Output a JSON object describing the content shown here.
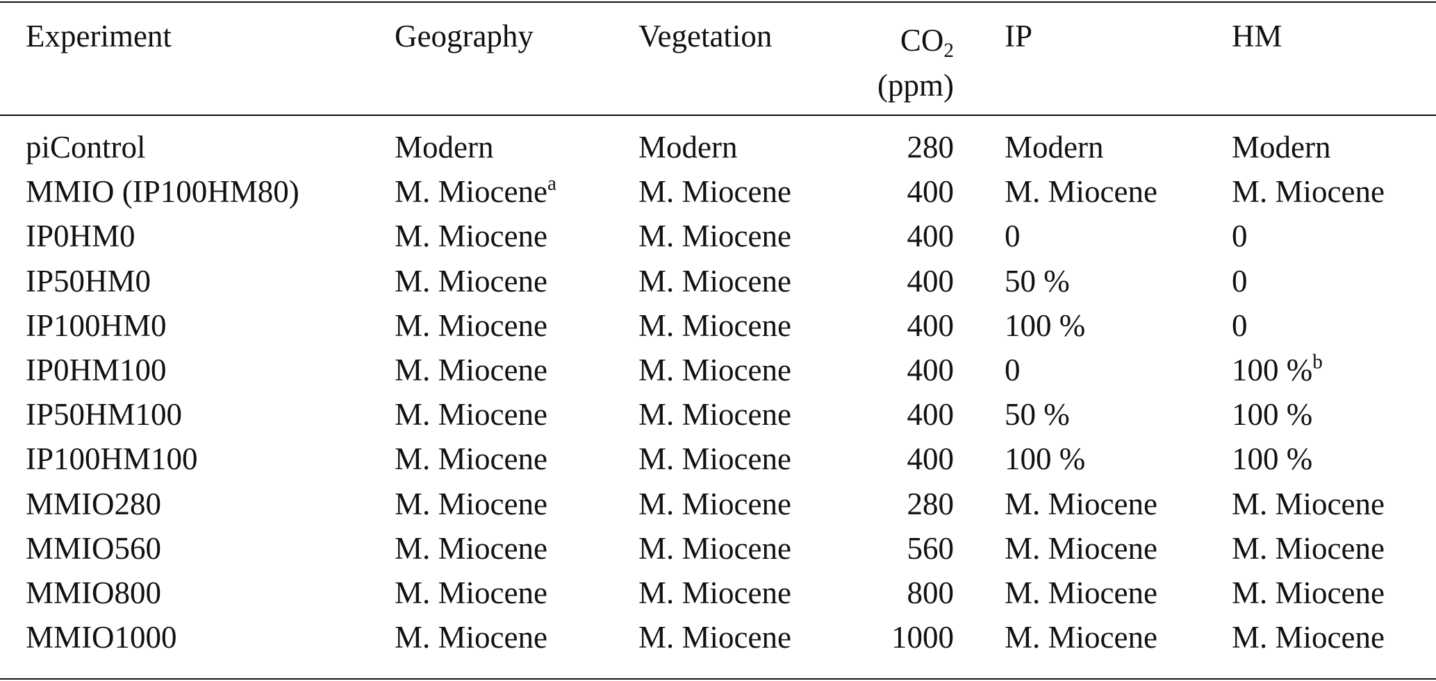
{
  "table": {
    "header": [
      "Experiment",
      "Geography",
      "Vegetation",
      {
        "text": "CO",
        "sub": "2",
        "line2": "(ppm)"
      },
      "IP",
      "HM"
    ],
    "rows": [
      [
        "piControl",
        "Modern",
        "Modern",
        280,
        "Modern",
        "Modern"
      ],
      [
        "MMIO (IP100HM80)",
        {
          "text": "M. Miocene",
          "sup": "a"
        },
        "M. Miocene",
        400,
        "M. Miocene",
        "M. Miocene"
      ],
      [
        "IP0HM0",
        "M. Miocene",
        "M. Miocene",
        400,
        "0",
        "0"
      ],
      [
        "IP50HM0",
        "M. Miocene",
        "M. Miocene",
        400,
        "50 %",
        "0"
      ],
      [
        "IP100HM0",
        "M. Miocene",
        "M. Miocene",
        400,
        "100 %",
        "0"
      ],
      [
        "IP0HM100",
        "M. Miocene",
        "M. Miocene",
        400,
        "0",
        {
          "text": "100 %",
          "sup": "b"
        }
      ],
      [
        "IP50HM100",
        "M. Miocene",
        "M. Miocene",
        400,
        "50 %",
        "100 %"
      ],
      [
        "IP100HM100",
        "M. Miocene",
        "M. Miocene",
        400,
        "100 %",
        "100 %"
      ],
      [
        "MMIO280",
        "M. Miocene",
        "M. Miocene",
        280,
        "M. Miocene",
        "M. Miocene"
      ],
      [
        "MMIO560",
        "M. Miocene",
        "M. Miocene",
        560,
        "M. Miocene",
        "M. Miocene"
      ],
      [
        "MMIO800",
        "M. Miocene",
        "M. Miocene",
        800,
        "M. Miocene",
        "M. Miocene"
      ],
      [
        "MMIO1000",
        "M. Miocene",
        "M. Miocene",
        1000,
        "M. Miocene",
        "M. Miocene"
      ]
    ]
  }
}
